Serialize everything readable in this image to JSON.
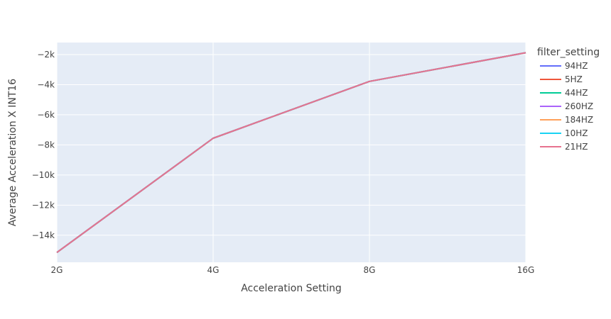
{
  "chart_data": {
    "type": "line",
    "title": "",
    "xlabel": "Acceleration Setting",
    "ylabel": "Average Acceleration X INT16",
    "categories": [
      "2G",
      "4G",
      "8G",
      "16G"
    ],
    "ylim": [
      -15800,
      -1200
    ],
    "yticks": [
      -14000,
      -12000,
      -10000,
      -8000,
      -6000,
      -4000,
      -2000
    ],
    "ytick_labels": [
      "−14k",
      "−12k",
      "−10k",
      "−8k",
      "−6k",
      "−4k",
      "−2k"
    ],
    "grid": true,
    "legend_position": "right",
    "legend_title": "filter_setting",
    "series": [
      {
        "name": "94HZ",
        "color": "#636EFA",
        "values": [
          -15150,
          -7560,
          -3780,
          -1880
        ]
      },
      {
        "name": "5HZ",
        "color": "#EF553B",
        "values": [
          -15150,
          -7560,
          -3780,
          -1880
        ]
      },
      {
        "name": "44HZ",
        "color": "#00CC96",
        "values": [
          -15150,
          -7560,
          -3780,
          -1880
        ]
      },
      {
        "name": "260HZ",
        "color": "#AB63FA",
        "values": [
          -15150,
          -7560,
          -3780,
          -1880
        ]
      },
      {
        "name": "184HZ",
        "color": "#FFA15A",
        "values": [
          -15150,
          -7560,
          -3780,
          -1880
        ]
      },
      {
        "name": "10HZ",
        "color": "#19D3F3",
        "values": [
          -15150,
          -7560,
          -3780,
          -1880
        ]
      },
      {
        "name": "21HZ",
        "color": "#E7728F",
        "values": [
          -15150,
          -7560,
          -3780,
          -1880
        ]
      }
    ]
  }
}
